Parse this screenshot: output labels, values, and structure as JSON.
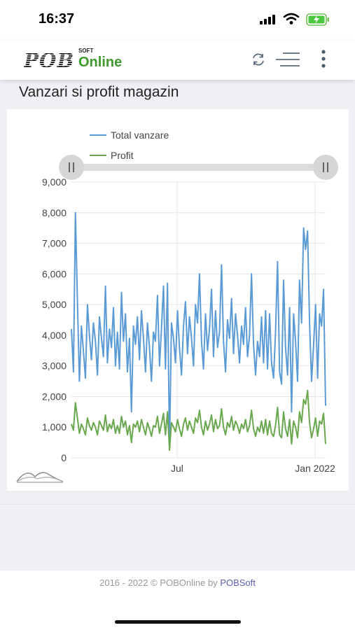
{
  "status": {
    "time": "16:37"
  },
  "header": {
    "logo_pob": "POB",
    "logo_soft": "SOFT",
    "logo_online": "Online",
    "icons": [
      "refresh-icon",
      "menu-lines-icon",
      "more-vertical-icon"
    ]
  },
  "page": {
    "title": "Vanzari si profit magazin"
  },
  "colors": {
    "total": "#5b9bd5",
    "profit": "#6aa84f",
    "brand_green": "#3e9a2c",
    "footer_link": "#5a5fb0"
  },
  "chart_data": {
    "type": "line",
    "x_start": "2021-02-10",
    "x_end": "2022-01-15",
    "x_ticks": [
      "Jul",
      "Jan 2022"
    ],
    "ylim": [
      0,
      9000
    ],
    "y_ticks": [
      "0",
      "1,000",
      "2,000",
      "3,000",
      "4,000",
      "5,000",
      "6,000",
      "7,000",
      "8,000",
      "9,000"
    ],
    "grid": true,
    "legend_position": "top",
    "series": [
      {
        "name": "Total vanzare",
        "color": "#5b9bd5",
        "values": [
          4200,
          2800,
          8000,
          5100,
          2500,
          4300,
          3500,
          2600,
          5000,
          4000,
          3200,
          4400,
          3800,
          2700,
          4600,
          3900,
          3300,
          5600,
          3100,
          4200,
          3600,
          4900,
          3000,
          4100,
          2900,
          5400,
          3800,
          4700,
          2800,
          3900,
          1500,
          4300,
          3700,
          4600,
          3200,
          4800,
          3900,
          2800,
          4400,
          3600,
          2500,
          4100,
          3800,
          5300,
          3000,
          4200,
          5600,
          2900,
          5700,
          300,
          4400,
          3900,
          3100,
          4800,
          3600,
          2700,
          4300,
          5100,
          3400,
          4600,
          3900,
          3000,
          5000,
          4400,
          6000,
          3800,
          2900,
          4700,
          3500,
          4200,
          5500,
          3300,
          4800,
          3600,
          4100,
          6300,
          3800,
          2800,
          4500,
          3900,
          5200,
          3400,
          4700,
          4000,
          3100,
          4300,
          3700,
          4900,
          3300,
          4000,
          6000,
          3700,
          2700,
          3800,
          3300,
          4600,
          3100,
          4800,
          2900,
          4700,
          3100,
          2600,
          4100,
          6400,
          2800,
          2400,
          5800,
          3600,
          2700,
          4900,
          1500,
          4700,
          3800,
          2500,
          5800,
          4400,
          7500,
          6800,
          7400,
          4400,
          2500,
          3700,
          5000,
          2600,
          4700,
          4300,
          5500,
          1700
        ]
      },
      {
        "name": "Profit",
        "color": "#6aa84f",
        "values": [
          1100,
          900,
          1800,
          1300,
          800,
          1100,
          950,
          750,
          1300,
          1050,
          900,
          1150,
          1000,
          750,
          1200,
          1050,
          900,
          1400,
          850,
          1100,
          950,
          1250,
          800,
          1050,
          800,
          1350,
          1000,
          1200,
          750,
          1050,
          500,
          1100,
          1000,
          1200,
          850,
          1250,
          1000,
          750,
          1150,
          950,
          700,
          1050,
          1000,
          1350,
          800,
          1100,
          1450,
          750,
          1500,
          250,
          1150,
          1000,
          850,
          1250,
          950,
          700,
          1100,
          1300,
          900,
          1200,
          1000,
          800,
          1300,
          1150,
          1550,
          1000,
          750,
          1200,
          900,
          1100,
          1400,
          850,
          1250,
          950,
          1050,
          1600,
          1000,
          750,
          1150,
          1000,
          1350,
          900,
          1200,
          1050,
          800,
          1100,
          950,
          1250,
          850,
          1050,
          1550,
          950,
          700,
          1000,
          850,
          1200,
          800,
          1250,
          750,
          1200,
          800,
          700,
          1050,
          1650,
          750,
          650,
          1500,
          950,
          700,
          1250,
          450,
          1200,
          1000,
          650,
          1500,
          1150,
          1900,
          1750,
          2200,
          1150,
          650,
          950,
          1300,
          700,
          1200,
          1100,
          1450,
          450
        ]
      }
    ]
  },
  "footer": {
    "years": "2016 - 2022 © POBOnline by",
    "brand": "POBSoft"
  }
}
